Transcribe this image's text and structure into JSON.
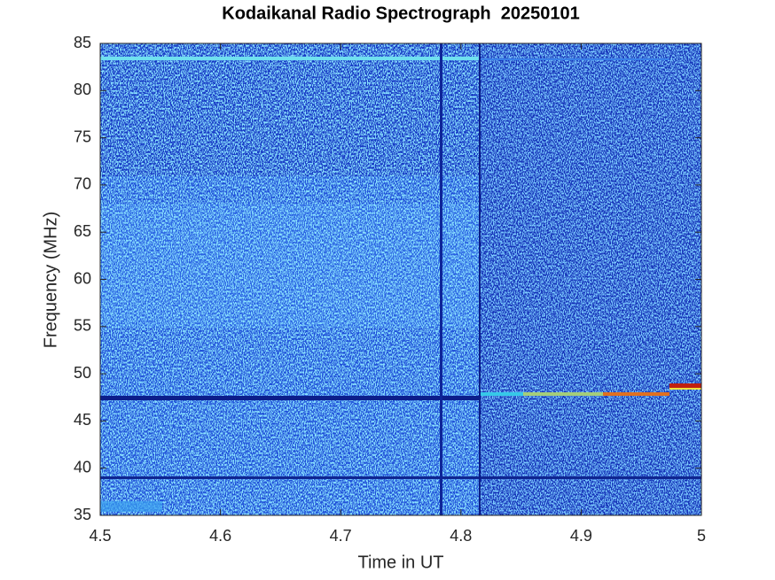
{
  "chart_data": {
    "type": "spectrogram",
    "title": "Kodaikanal Radio Spectrograph  20250101",
    "xlabel": "Time in UT",
    "ylabel": "Frequency (MHz)",
    "xlim": [
      4.5,
      5
    ],
    "xticks": [
      4.5,
      4.6,
      4.7,
      4.8,
      4.9,
      5
    ],
    "ylim": [
      35,
      85
    ],
    "yticks": [
      35,
      40,
      45,
      50,
      55,
      60,
      65,
      70,
      75,
      80,
      85
    ]
  }
}
